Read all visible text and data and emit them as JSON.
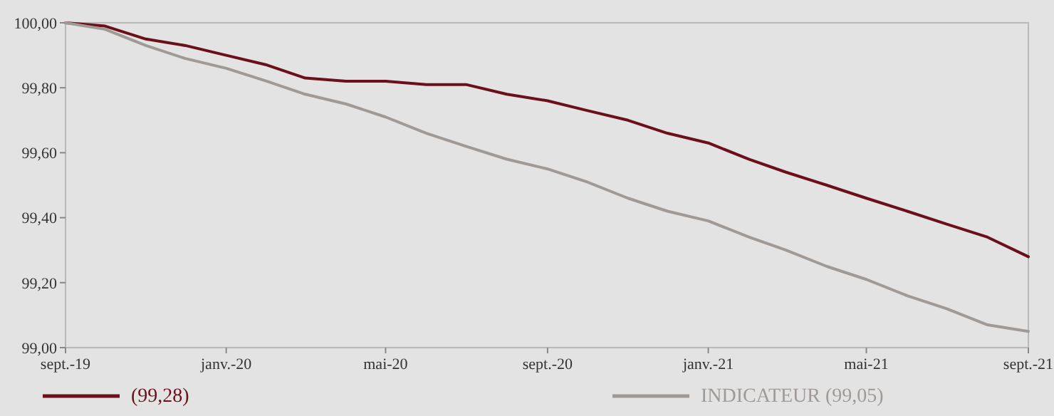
{
  "chart_data": {
    "type": "line",
    "x": [
      "2019-09",
      "2019-10",
      "2019-11",
      "2019-12",
      "2020-01",
      "2020-02",
      "2020-03",
      "2020-04",
      "2020-05",
      "2020-06",
      "2020-07",
      "2020-08",
      "2020-09",
      "2020-10",
      "2020-11",
      "2020-12",
      "2021-01",
      "2021-02",
      "2021-03",
      "2021-04",
      "2021-05",
      "2021-06",
      "2021-07",
      "2021-08",
      "2021-09"
    ],
    "series": [
      {
        "name": "(99,28)",
        "color": "#6b0f1a",
        "values": [
          100.0,
          99.99,
          99.95,
          99.93,
          99.9,
          99.87,
          99.83,
          99.82,
          99.82,
          99.81,
          99.81,
          99.78,
          99.76,
          99.73,
          99.7,
          99.66,
          99.63,
          99.58,
          99.54,
          99.5,
          99.46,
          99.42,
          99.38,
          99.34,
          99.28
        ]
      },
      {
        "name": "INDICATEUR (99,05)",
        "color": "#a09a96",
        "values": [
          100.0,
          99.98,
          99.93,
          99.89,
          99.86,
          99.82,
          99.78,
          99.75,
          99.71,
          99.66,
          99.62,
          99.58,
          99.55,
          99.51,
          99.46,
          99.42,
          99.39,
          99.34,
          99.3,
          99.25,
          99.21,
          99.16,
          99.12,
          99.07,
          99.05
        ]
      }
    ],
    "xlim": [
      "2019-09",
      "2021-09"
    ],
    "xticks": [
      {
        "value": "2019-09",
        "label": "sept.-19"
      },
      {
        "value": "2020-01",
        "label": "janv.-20"
      },
      {
        "value": "2020-05",
        "label": "mai-20"
      },
      {
        "value": "2020-09",
        "label": "sept.-20"
      },
      {
        "value": "2021-01",
        "label": "janv.-21"
      },
      {
        "value": "2021-05",
        "label": "mai-21"
      },
      {
        "value": "2021-09",
        "label": "sept.-21"
      }
    ],
    "ylim": [
      99,
      100
    ],
    "yticks": [
      {
        "value": 99,
        "label": "99,00"
      },
      {
        "value": 99.2,
        "label": "99,20"
      },
      {
        "value": 99.4,
        "label": "99,40"
      },
      {
        "value": 99.6,
        "label": "99,60"
      },
      {
        "value": 99.8,
        "label": "99,80"
      },
      {
        "value": 100,
        "label": "100,00"
      }
    ],
    "grid": false,
    "legend": "bottom",
    "marker": "none",
    "line_style": "solid"
  }
}
